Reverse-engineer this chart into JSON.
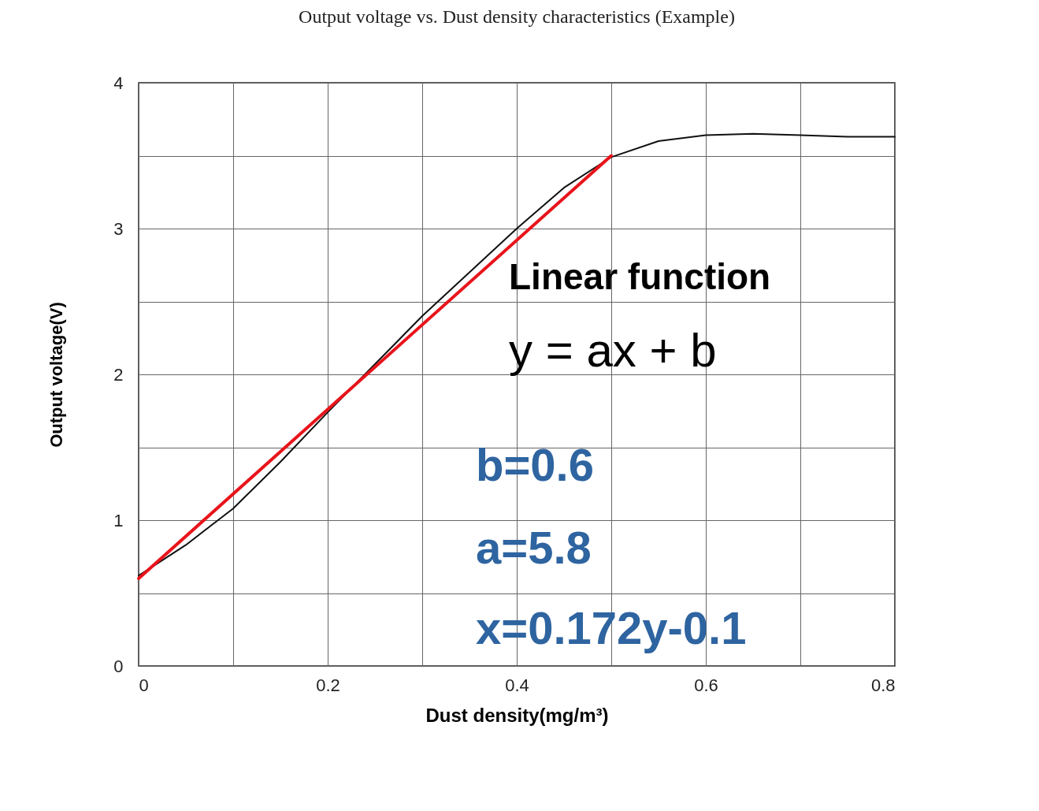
{
  "chart_data": {
    "type": "line",
    "title": "Output voltage vs. Dust density characteristics (Example)",
    "xlabel": "Dust density(mg/m³)",
    "ylabel": "Output voltage(V)",
    "series": [
      {
        "color": "#111111",
        "x": [
          0,
          0.05,
          0.1,
          0.15,
          0.2,
          0.25,
          0.3,
          0.35,
          0.4,
          0.45,
          0.5,
          0.55,
          0.6,
          0.65,
          0.7,
          0.75,
          0.8
        ],
        "values": [
          0.62,
          0.83,
          1.08,
          1.4,
          1.74,
          2.07,
          2.4,
          2.7,
          3.0,
          3.28,
          3.49,
          3.6,
          3.64,
          3.65,
          3.64,
          3.63,
          3.63
        ]
      },
      {
        "color": "#e8141b",
        "x": [
          0,
          0.5
        ],
        "values": [
          0.6,
          3.5
        ]
      }
    ],
    "xlim": [
      0,
      0.8
    ],
    "ylim": [
      0,
      4
    ],
    "xticks": [
      0,
      {
        "value": 0.1,
        "label": null
      },
      0.2,
      {
        "value": 0.3,
        "label": null
      },
      0.4,
      {
        "value": 0.5,
        "label": null
      },
      0.6,
      {
        "value": 0.7,
        "label": null
      },
      0.8
    ],
    "yticks": [
      0,
      {
        "value": 0.5,
        "label": null
      },
      1,
      {
        "value": 1.5,
        "label": null
      },
      2,
      {
        "value": 2.5,
        "label": null
      },
      3,
      {
        "value": 3.5,
        "label": null
      },
      4
    ],
    "grid": true,
    "annotations": [
      "Linear function",
      "y = ax + b",
      "b=0.6",
      "a=5.8",
      "x=0.172y-0.1"
    ]
  }
}
